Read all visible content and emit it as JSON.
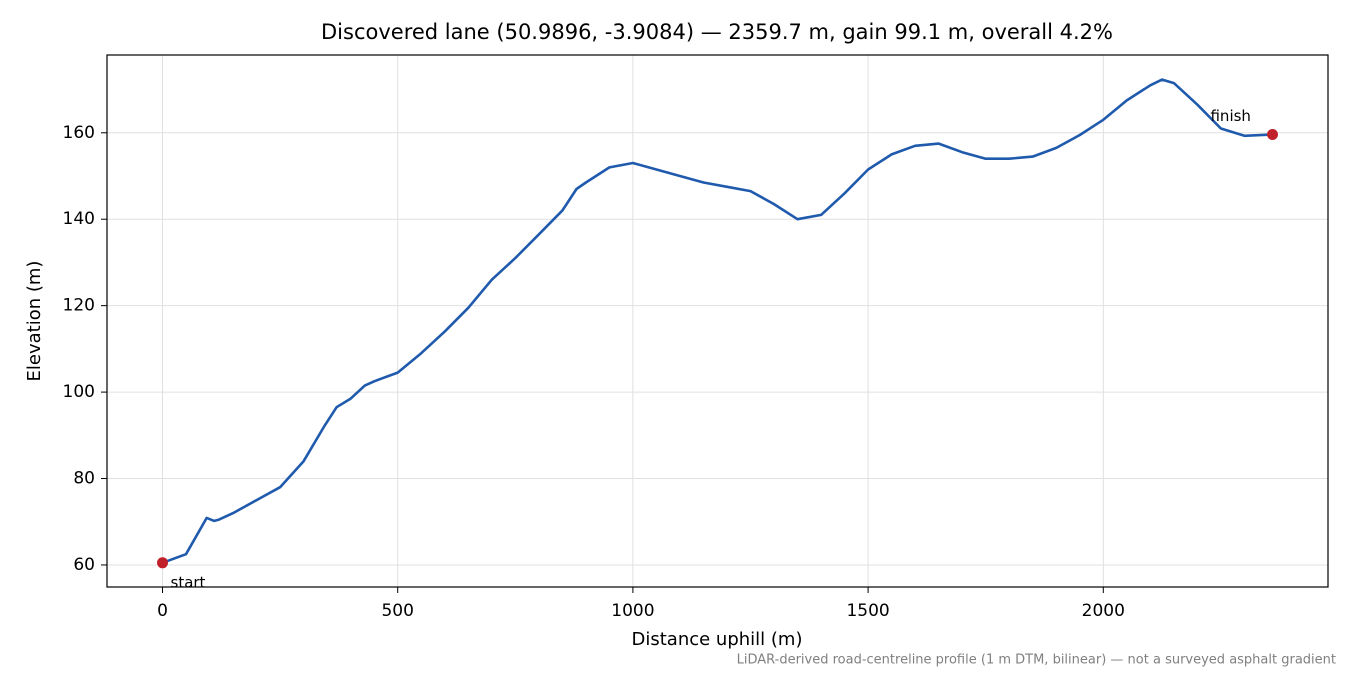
{
  "chart_data": {
    "type": "line",
    "title": "Discovered lane (50.9896, -3.9084) — 2359.7 m, gain 99.1 m, overall 4.2%",
    "x_label": "Distance uphill (m)",
    "y_label": "Elevation (m)",
    "footnote": "LiDAR-derived road-centreline profile (1 m DTM, bilinear) — not a surveyed asphalt gradient",
    "x": [
      0,
      50,
      94,
      110,
      120,
      150,
      200,
      250,
      300,
      345,
      370,
      400,
      430,
      450,
      500,
      550,
      600,
      650,
      700,
      750,
      800,
      850,
      880,
      900,
      950,
      1000,
      1050,
      1100,
      1150,
      1200,
      1250,
      1300,
      1350,
      1400,
      1450,
      1500,
      1550,
      1600,
      1650,
      1700,
      1750,
      1800,
      1850,
      1900,
      1950,
      2000,
      2050,
      2100,
      2125,
      2150,
      2200,
      2250,
      2300,
      2359.7
    ],
    "values": [
      60.5,
      62.5,
      70.9,
      70.2,
      70.5,
      72,
      75,
      78,
      84,
      92.3,
      96.5,
      98.5,
      101.5,
      102.5,
      104.5,
      109,
      114,
      119.5,
      126,
      131,
      136.5,
      142,
      147,
      148.5,
      152,
      153,
      151.5,
      150,
      148.5,
      147.5,
      146.5,
      143.5,
      140,
      141,
      146,
      151.5,
      155,
      157,
      157.5,
      155.5,
      154,
      154,
      154.5,
      156.5,
      159.5,
      163,
      167.5,
      171,
      172.3,
      171.5,
      166.5,
      161,
      159.3,
      159.6
    ],
    "color": "#1f5aad",
    "markers": [
      {
        "label": "start",
        "x": 0,
        "y": 60.5
      },
      {
        "label": "finish",
        "x": 2359.7,
        "y": 159.6
      }
    ],
    "marker_color": "#c0202a",
    "xlim": [
      -118,
      2477.7
    ],
    "ylim": [
      54.9,
      178.0
    ],
    "xticks": [
      0,
      500,
      1000,
      1500,
      2000
    ],
    "yticks": [
      60,
      80,
      100,
      120,
      140,
      160
    ],
    "grid": true
  }
}
